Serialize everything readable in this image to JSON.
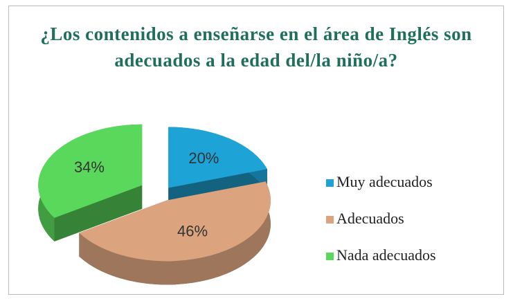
{
  "chart_data": {
    "type": "pie3d",
    "title": "¿Los contenidos a enseñarse en el área de Inglés son adecuados a la edad del/la niño/a?",
    "categories": [
      "Muy adecuados",
      "Adecuados",
      "Nada adecuados"
    ],
    "values": [
      20,
      46,
      34
    ],
    "value_labels": [
      "20%",
      "46%",
      "34%"
    ],
    "colors": [
      "#1ea3d6",
      "#dba47f",
      "#5ad85c"
    ],
    "legend": "right"
  }
}
